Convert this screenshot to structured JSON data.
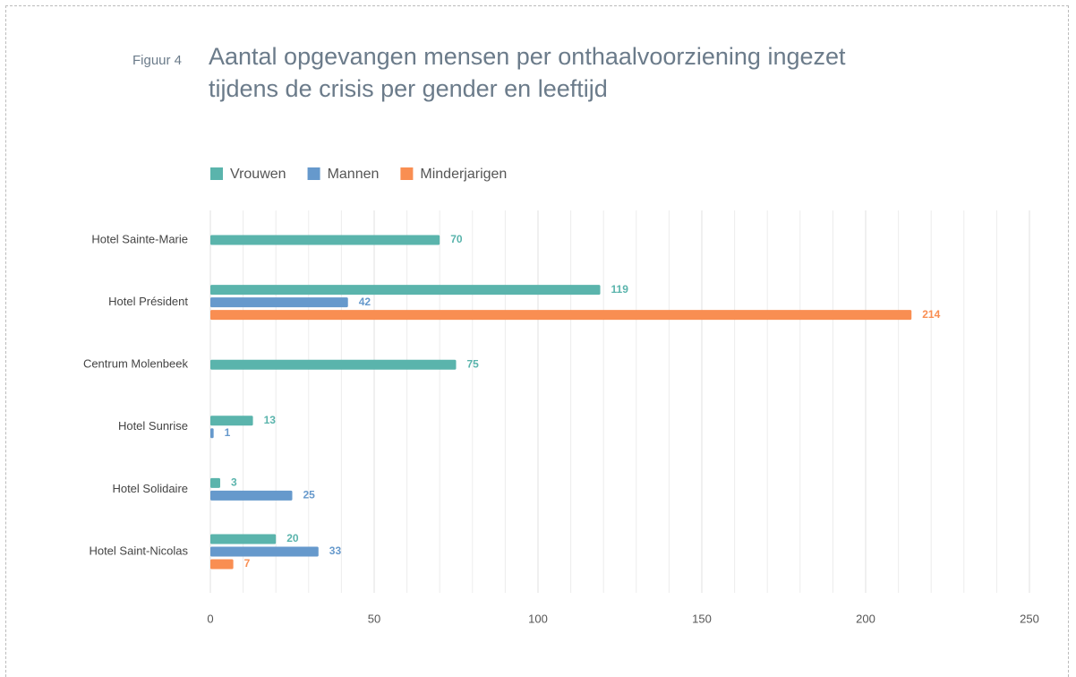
{
  "chart_data": {
    "type": "hbar",
    "figure_label": "Figuur 4",
    "title": "Aantal opgevangen mensen per onthaalvoorziening ingezet tijdens de crisis per gender en leeftijd",
    "categories": [
      "Hotel Sainte-Marie",
      "Hotel Président",
      "Centrum Molenbeek",
      "Hotel Sunrise",
      "Hotel Solidaire",
      "Hotel Saint-Nicolas"
    ],
    "series": [
      {
        "name": "Vrouwen",
        "color": "#5ab4ac",
        "values": [
          70,
          119,
          75,
          13,
          3,
          20
        ]
      },
      {
        "name": "Mannen",
        "color": "#6699cc",
        "values": [
          null,
          42,
          null,
          1,
          25,
          33
        ]
      },
      {
        "name": "Minderjarigen",
        "color": "#f98e52",
        "values": [
          null,
          214,
          null,
          null,
          null,
          7
        ]
      }
    ],
    "xlim": [
      0,
      250
    ],
    "xticks": [
      0,
      50,
      100,
      150,
      200,
      250
    ],
    "grid": true
  }
}
